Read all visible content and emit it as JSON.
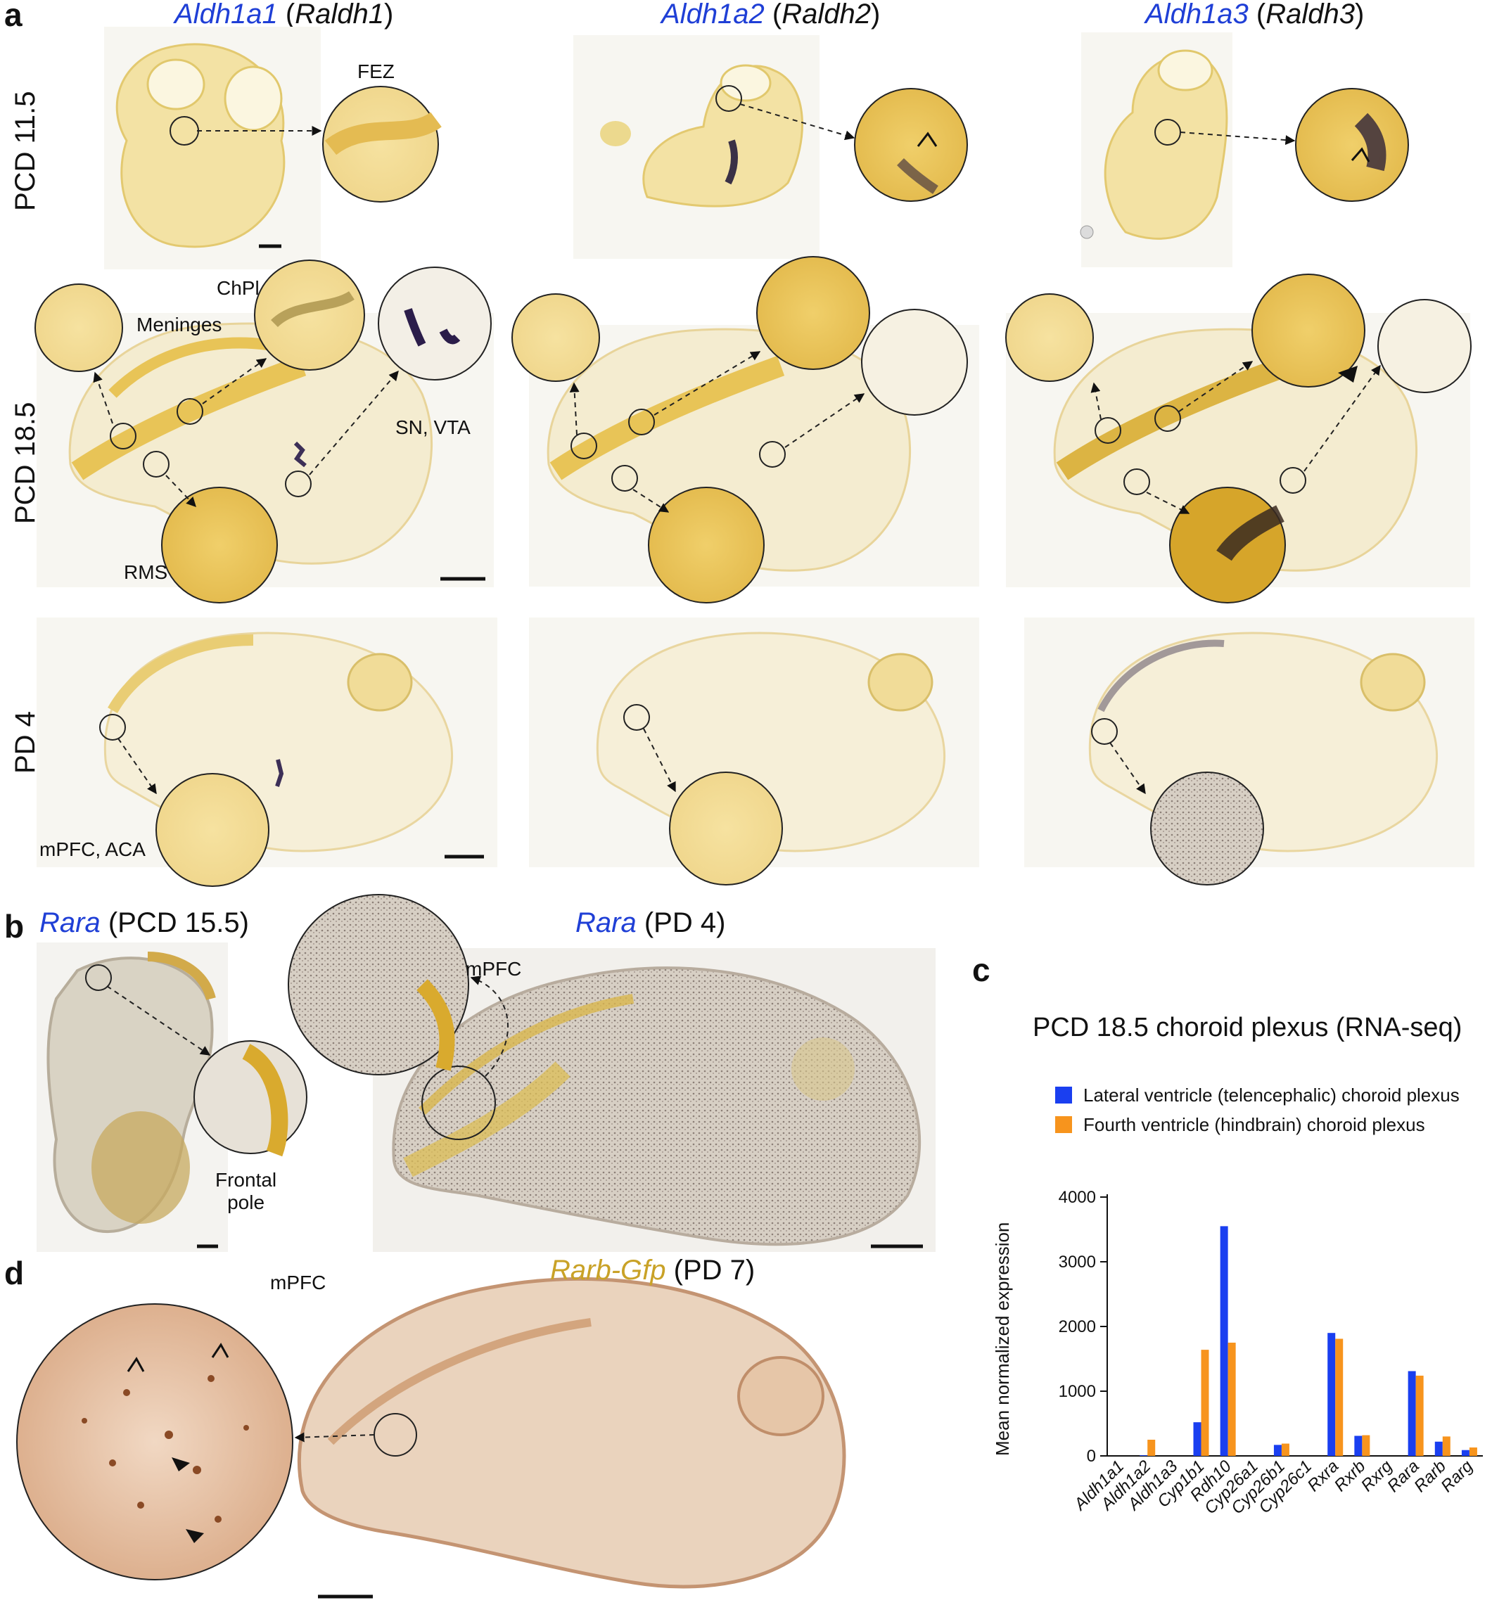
{
  "panels": {
    "a": "a",
    "b": "b",
    "c": "c",
    "d": "d"
  },
  "panel_a": {
    "columns": [
      {
        "gene": "Aldh1a1",
        "alias": "Raldh1"
      },
      {
        "gene": "Aldh1a2",
        "alias": "Raldh2"
      },
      {
        "gene": "Aldh1a3",
        "alias": "Raldh3"
      }
    ],
    "rows": [
      "PCD 11.5",
      "PCD 18.5",
      "PD 4"
    ],
    "annotations": {
      "fez": "FEZ",
      "chpl": "ChPl",
      "meninges": "Meninges",
      "sn_vta": "SN, VTA",
      "rms": "RMS",
      "mpfc_aca": "mPFC, ACA"
    }
  },
  "panel_b": {
    "left_gene": "Rara",
    "left_stage": "(PCD 15.5)",
    "right_gene": "Rara",
    "right_stage": "(PD 4)",
    "mpfc": "mPFC",
    "frontal_pole": "Frontal\npole"
  },
  "panel_d": {
    "gene": "Rarb-Gfp",
    "stage": "(PD 7)",
    "mpfc": "mPFC"
  },
  "colors": {
    "gene_blue": "#1f3fd6",
    "series_lateral": "#1a3ff0",
    "series_fourth": "#f7941d",
    "ish_yellow": "#e8c862",
    "gfp_brown": "#c88a5e"
  },
  "chart_data": {
    "type": "bar",
    "title": "PCD 18.5 choroid plexus (RNA-seq)",
    "ylabel": "Mean normalized expression",
    "xlabel": "",
    "ylim": [
      0,
      4000
    ],
    "yticks": [
      0,
      1000,
      2000,
      3000,
      4000
    ],
    "legend_position": "top",
    "categories": [
      "Aldh1a1",
      "Aldh1a2",
      "Aldh1a3",
      "Cyp1b1",
      "Rdh10",
      "Cyp26a1",
      "Cyp26b1",
      "Cyp26c1",
      "Rxra",
      "Rxrb",
      "Rxrg",
      "Rara",
      "Rarb",
      "Rarg"
    ],
    "series": [
      {
        "name": "Lateral ventricle (telencephalic) choroid plexus",
        "color": "#1a3ff0",
        "values": [
          0,
          10,
          0,
          520,
          3550,
          0,
          170,
          0,
          1900,
          310,
          0,
          1310,
          220,
          90
        ]
      },
      {
        "name": "Fourth ventricle (hindbrain) choroid plexus",
        "color": "#f7941d",
        "values": [
          0,
          250,
          0,
          1640,
          1750,
          0,
          190,
          0,
          1810,
          320,
          0,
          1240,
          300,
          130
        ]
      }
    ]
  }
}
